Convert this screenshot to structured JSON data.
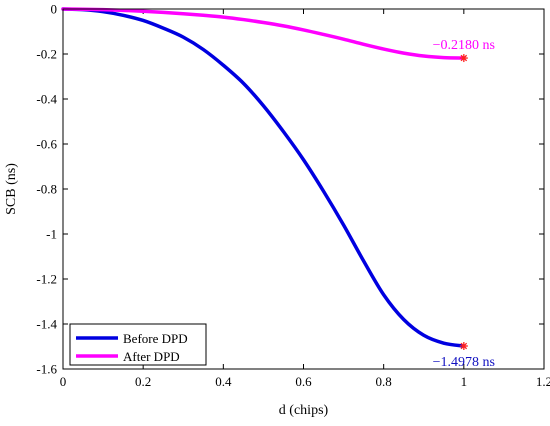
{
  "chart_data": {
    "type": "line",
    "title": "",
    "xlabel": "d (chips)",
    "ylabel": "SCB (ns)",
    "xlim": [
      0,
      1.2
    ],
    "ylim": [
      -1.6,
      0
    ],
    "xticks": [
      "0",
      "0.2",
      "0.4",
      "0.6",
      "0.8",
      "1",
      "1.2"
    ],
    "yticks": [
      "0",
      "-0.2",
      "-0.4",
      "-0.6",
      "-0.8",
      "-1",
      "-1.2",
      "-1.4",
      "-1.6"
    ],
    "grid": false,
    "legend": "bottom-left",
    "series": [
      {
        "name": "Before DPD",
        "color": "#0000e0",
        "x": [
          0,
          0.05,
          0.1,
          0.15,
          0.2,
          0.25,
          0.3,
          0.35,
          0.4,
          0.45,
          0.5,
          0.55,
          0.6,
          0.65,
          0.7,
          0.75,
          0.8,
          0.85,
          0.9,
          0.95,
          1.0
        ],
        "y": [
          0,
          -0.003,
          -0.012,
          -0.028,
          -0.051,
          -0.085,
          -0.125,
          -0.18,
          -0.25,
          -0.33,
          -0.43,
          -0.545,
          -0.67,
          -0.81,
          -0.96,
          -1.12,
          -1.27,
          -1.38,
          -1.45,
          -1.485,
          -1.4978
        ]
      },
      {
        "name": "After DPD",
        "color": "#ff00ff",
        "x": [
          0,
          0.05,
          0.1,
          0.15,
          0.2,
          0.25,
          0.3,
          0.35,
          0.4,
          0.45,
          0.5,
          0.55,
          0.6,
          0.65,
          0.7,
          0.75,
          0.8,
          0.85,
          0.9,
          0.95,
          1.0
        ],
        "y": [
          0,
          -0.001,
          -0.003,
          -0.006,
          -0.01,
          -0.015,
          -0.021,
          -0.028,
          -0.036,
          -0.047,
          -0.06,
          -0.075,
          -0.093,
          -0.113,
          -0.134,
          -0.157,
          -0.178,
          -0.196,
          -0.209,
          -0.216,
          -0.218
        ]
      }
    ],
    "markers": [
      {
        "x": 1.0,
        "y": -0.218,
        "color": "#ff2020"
      },
      {
        "x": 1.0,
        "y": -1.4978,
        "color": "#ff2020"
      }
    ],
    "annotations": [
      {
        "text": "−0.2180 ns",
        "x": 1.0,
        "y": -0.218,
        "color": "#ff00ff",
        "position": "above"
      },
      {
        "text": "−1.4978 ns",
        "x": 1.0,
        "y": -1.4978,
        "color": "#1010c0",
        "position": "below"
      }
    ]
  }
}
